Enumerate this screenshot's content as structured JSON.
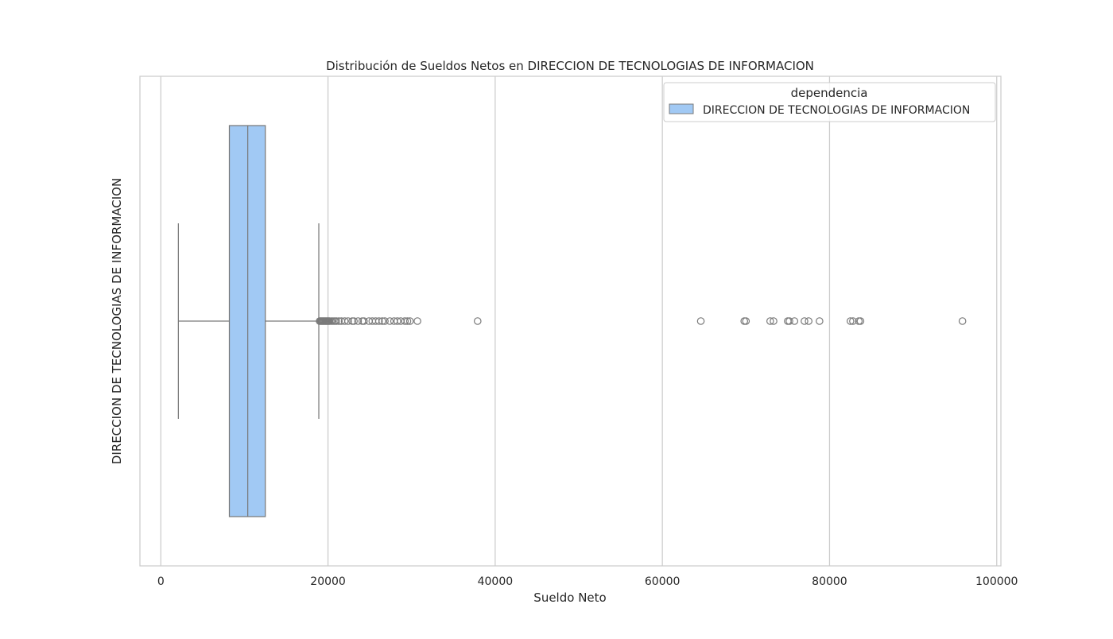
{
  "chart_data": {
    "type": "boxplot",
    "orientation": "horizontal",
    "title": "Distribución de Sueldos Netos en DIRECCION DE TECNOLOGIAS DE INFORMACION",
    "xlabel": "Sueldo Neto",
    "ylabel": "DIRECCION DE TECNOLOGIAS DE INFORMACION",
    "xlim": [
      -2500,
      100500
    ],
    "xticks": [
      0,
      20000,
      40000,
      60000,
      80000,
      100000
    ],
    "xtick_labels": [
      "0",
      "20000",
      "40000",
      "60000",
      "80000",
      "100000"
    ],
    "grid": true,
    "legend": {
      "title": "dependencia",
      "position": "top-right",
      "entries": [
        "DIRECCION DE TECNOLOGIAS DE INFORMACION"
      ]
    },
    "series": [
      {
        "name": "DIRECCION DE TECNOLOGIAS DE INFORMACION",
        "color": "#a1c9f4",
        "edge_color": "#7a7a7a",
        "whisker_low": 2100,
        "q1": 8200,
        "median": 10400,
        "q3": 12500,
        "whisker_high": 18900,
        "outliers": [
          19000,
          19100,
          19200,
          19300,
          19400,
          19500,
          19600,
          19700,
          19800,
          19900,
          20000,
          20100,
          20200,
          20400,
          20600,
          20800,
          21000,
          21300,
          21600,
          22000,
          22400,
          22900,
          23100,
          23600,
          24100,
          24300,
          24900,
          25300,
          25700,
          26100,
          26500,
          26800,
          27400,
          27900,
          28300,
          28700,
          29200,
          29500,
          29800,
          30700,
          37900,
          64600,
          69800,
          70000,
          72900,
          73300,
          75000,
          75200,
          75800,
          77000,
          77500,
          78800,
          82500,
          82800,
          83500,
          83700,
          95900
        ]
      }
    ]
  }
}
